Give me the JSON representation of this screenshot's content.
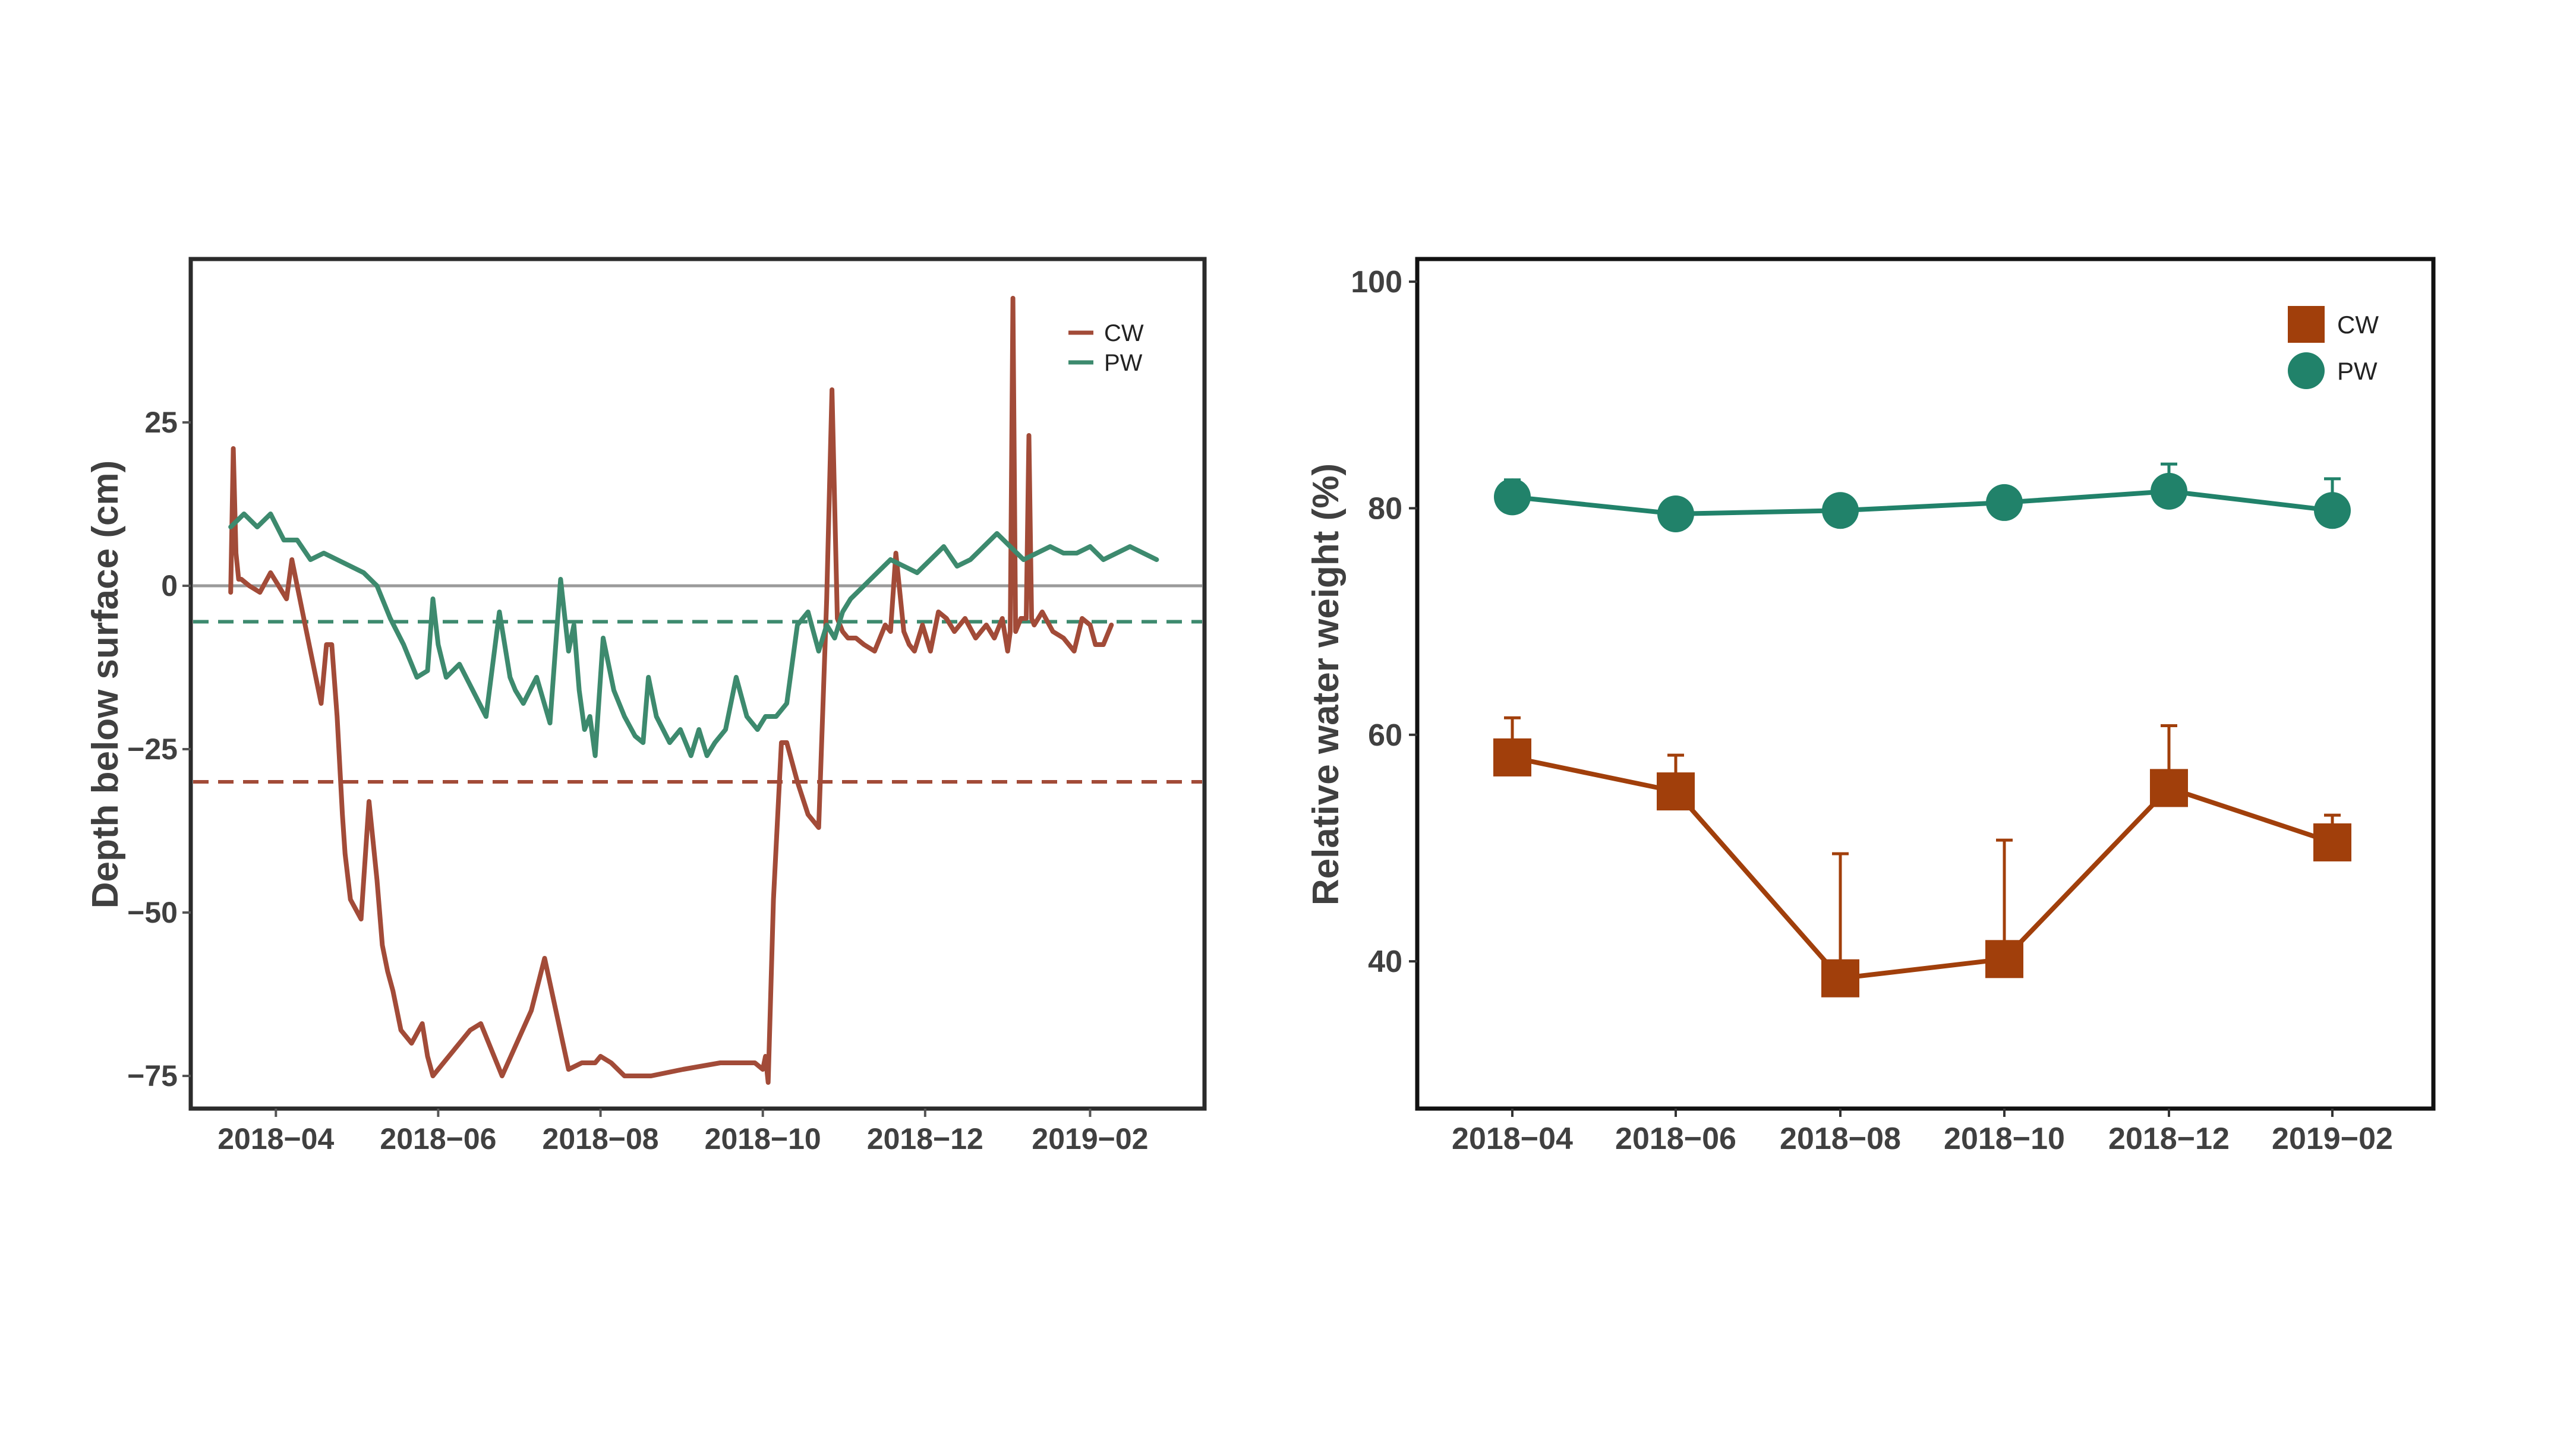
{
  "chart_data": [
    {
      "type": "line",
      "title": "",
      "xlabel": "",
      "ylabel": "Depth below surface (cm)",
      "ylim": [
        -80,
        50
      ],
      "yticks": [
        -75,
        -50,
        -25,
        0,
        25
      ],
      "ytick_labels": [
        "−75",
        "−50",
        "−25",
        "0",
        "25"
      ],
      "xlim": [
        "2018-02-28",
        "2019-03-16"
      ],
      "xticks": [
        "2018-04-01",
        "2018-06-01",
        "2018-08-01",
        "2018-10-01",
        "2018-12-01",
        "2019-02-01"
      ],
      "xtick_labels": [
        "2018−04",
        "2018−06",
        "2018−08",
        "2018−10",
        "2018−12",
        "2019−02"
      ],
      "grid": false,
      "legend": "top-right",
      "reference_lines": [
        {
          "y": 0,
          "style": "solid",
          "color": "#9a9a9a"
        },
        {
          "y": -5.5,
          "style": "dashed",
          "color": "#3d8a6e"
        },
        {
          "y": -30,
          "style": "dashed",
          "color": "#a24b38"
        }
      ],
      "series": [
        {
          "name": "CW",
          "color": "#a24b38",
          "x": [
            "2018-03-15",
            "2018-03-16",
            "2018-03-17",
            "2018-03-18",
            "2018-03-19",
            "2018-03-22",
            "2018-03-26",
            "2018-03-30",
            "2018-04-02",
            "2018-04-05",
            "2018-04-07",
            "2018-04-09",
            "2018-04-10",
            "2018-04-12",
            "2018-04-15",
            "2018-04-18",
            "2018-04-20",
            "2018-04-22",
            "2018-04-24",
            "2018-04-26",
            "2018-04-27",
            "2018-04-29",
            "2018-05-03",
            "2018-05-06",
            "2018-05-09",
            "2018-05-11",
            "2018-05-13",
            "2018-05-15",
            "2018-05-18",
            "2018-05-22",
            "2018-05-26",
            "2018-05-28",
            "2018-05-30",
            "2018-06-01",
            "2018-06-05",
            "2018-06-09",
            "2018-06-13",
            "2018-06-17",
            "2018-06-25",
            "2018-07-06",
            "2018-07-11",
            "2018-07-20",
            "2018-07-25",
            "2018-07-30",
            "2018-08-01",
            "2018-08-05",
            "2018-08-10",
            "2018-08-20",
            "2018-09-01",
            "2018-09-15",
            "2018-09-28",
            "2018-10-01",
            "2018-10-02",
            "2018-10-03",
            "2018-10-05",
            "2018-10-08",
            "2018-10-10",
            "2018-10-14",
            "2018-10-18",
            "2018-10-22",
            "2018-10-25",
            "2018-10-27",
            "2018-10-29",
            "2018-10-31",
            "2018-11-02",
            "2018-11-05",
            "2018-11-08",
            "2018-11-12",
            "2018-11-16",
            "2018-11-18",
            "2018-11-20",
            "2018-11-23",
            "2018-11-25",
            "2018-11-27",
            "2018-11-30",
            "2018-12-03",
            "2018-12-06",
            "2018-12-09",
            "2018-12-12",
            "2018-12-16",
            "2018-12-20",
            "2018-12-24",
            "2018-12-27",
            "2018-12-30",
            "2019-01-01",
            "2019-01-02",
            "2019-01-03",
            "2019-01-04",
            "2019-01-06",
            "2019-01-08",
            "2019-01-09",
            "2019-01-10",
            "2019-01-11",
            "2019-01-14",
            "2019-01-18",
            "2019-01-22",
            "2019-01-26",
            "2019-01-29",
            "2019-02-01",
            "2019-02-03",
            "2019-02-06",
            "2019-02-09"
          ],
          "y": [
            -1,
            21,
            5,
            1,
            1,
            0,
            -1,
            2,
            0,
            -2,
            4,
            0,
            -2,
            -6,
            -12,
            -18,
            -9,
            -9,
            -20,
            -35,
            -41,
            -48,
            -51,
            -33,
            -45,
            -55,
            -59,
            -62,
            -68,
            -70,
            -67,
            -72,
            -75,
            -74,
            -72,
            -70,
            -68,
            -67,
            -75,
            -65,
            -57,
            -74,
            -73,
            -73,
            -72,
            -73,
            -75,
            -75,
            -74,
            -73,
            -73,
            -74,
            -72,
            -76,
            -48,
            -24,
            -24,
            -30,
            -35,
            -37,
            -2,
            30,
            -5,
            -7,
            -8,
            -8,
            -9,
            -10,
            -6,
            -7,
            5,
            -7,
            -9,
            -10,
            -6,
            -10,
            -4,
            -5,
            -7,
            -5,
            -8,
            -6,
            -8,
            -5,
            -10,
            -7,
            44,
            -7,
            -5,
            -5,
            23,
            -5,
            -6,
            -4,
            -7,
            -8,
            -10,
            -5,
            -6,
            -9,
            -9,
            -6
          ]
        },
        {
          "name": "PW",
          "color": "#3d8a6e",
          "x": [
            "2018-03-15",
            "2018-03-20",
            "2018-03-25",
            "2018-03-30",
            "2018-04-04",
            "2018-04-09",
            "2018-04-14",
            "2018-04-19",
            "2018-04-24",
            "2018-04-29",
            "2018-05-04",
            "2018-05-09",
            "2018-05-14",
            "2018-05-19",
            "2018-05-24",
            "2018-05-28",
            "2018-05-30",
            "2018-06-01",
            "2018-06-04",
            "2018-06-09",
            "2018-06-14",
            "2018-06-19",
            "2018-06-24",
            "2018-06-28",
            "2018-06-30",
            "2018-07-03",
            "2018-07-08",
            "2018-07-13",
            "2018-07-17",
            "2018-07-20",
            "2018-07-22",
            "2018-07-24",
            "2018-07-26",
            "2018-07-28",
            "2018-07-30",
            "2018-08-02",
            "2018-08-06",
            "2018-08-10",
            "2018-08-14",
            "2018-08-17",
            "2018-08-19",
            "2018-08-22",
            "2018-08-27",
            "2018-08-31",
            "2018-09-04",
            "2018-09-07",
            "2018-09-10",
            "2018-09-13",
            "2018-09-17",
            "2018-09-21",
            "2018-09-25",
            "2018-09-29",
            "2018-10-02",
            "2018-10-06",
            "2018-10-10",
            "2018-10-14",
            "2018-10-18",
            "2018-10-22",
            "2018-10-25",
            "2018-10-28",
            "2018-10-31",
            "2018-11-03",
            "2018-11-08",
            "2018-11-13",
            "2018-11-18",
            "2018-11-23",
            "2018-11-28",
            "2018-12-03",
            "2018-12-08",
            "2018-12-13",
            "2018-12-18",
            "2018-12-23",
            "2018-12-28",
            "2019-01-02",
            "2019-01-07",
            "2019-01-12",
            "2019-01-17",
            "2019-01-22",
            "2019-01-27",
            "2019-02-01",
            "2019-02-06",
            "2019-02-11",
            "2019-02-16",
            "2019-02-21",
            "2019-02-26"
          ],
          "y": [
            9,
            11,
            9,
            11,
            7,
            7,
            4,
            5,
            4,
            3,
            2,
            0,
            -5,
            -9,
            -14,
            -13,
            -2,
            -9,
            -14,
            -12,
            -16,
            -20,
            -4,
            -14,
            -16,
            -18,
            -14,
            -21,
            1,
            -10,
            -6,
            -16,
            -22,
            -20,
            -26,
            -8,
            -16,
            -20,
            -23,
            -24,
            -14,
            -20,
            -24,
            -22,
            -26,
            -22,
            -26,
            -24,
            -22,
            -14,
            -20,
            -22,
            -20,
            -20,
            -18,
            -6,
            -4,
            -10,
            -6,
            -8,
            -4,
            -2,
            0,
            2,
            4,
            3,
            2,
            4,
            6,
            3,
            4,
            6,
            8,
            6,
            4,
            5,
            6,
            5,
            5,
            6,
            4,
            5,
            6,
            5,
            4
          ]
        }
      ]
    },
    {
      "type": "line",
      "title": "",
      "xlabel": "",
      "ylabel": "Relative water weight (%)",
      "ylim": [
        27,
        102
      ],
      "yticks": [
        40,
        60,
        80,
        100
      ],
      "ytick_labels": [
        "40",
        "60",
        "80",
        "100"
      ],
      "x": [
        "2018-04",
        "2018-06",
        "2018-08",
        "2018-10",
        "2018-12",
        "2019-02"
      ],
      "grid": false,
      "legend": "top-right",
      "series": [
        {
          "name": "CW",
          "color": "#a13f0b",
          "marker": "square",
          "values": [
            58,
            55,
            38.5,
            40.2,
            55.3,
            50.5
          ],
          "error": [
            3.5,
            3.2,
            11,
            10.5,
            5.5,
            2.4
          ]
        },
        {
          "name": "PW",
          "color": "#21826a",
          "marker": "circle",
          "values": [
            81,
            79.5,
            79.8,
            80.5,
            81.5,
            79.8
          ],
          "error": [
            1.5,
            0.4,
            0.4,
            0.6,
            2.4,
            2.8
          ]
        }
      ]
    }
  ]
}
